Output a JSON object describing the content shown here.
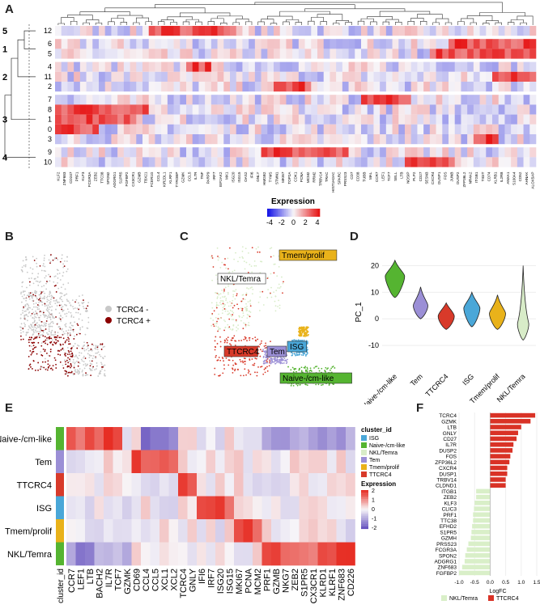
{
  "panel_labels": {
    "a": "A",
    "b": "B",
    "c": "C",
    "d": "D",
    "e": "E",
    "f": "F"
  },
  "panel_a": {
    "cluster_groups": [
      "5",
      "1",
      "2",
      "3",
      "4"
    ],
    "rows": [
      "12",
      "6",
      "5",
      "4",
      "11",
      "2",
      "7",
      "8",
      "1",
      "0",
      "3",
      "9",
      "10"
    ],
    "gene_labels": [
      "KLF2",
      "ZNF683",
      "CD247",
      "PRF1",
      "KLF3",
      "FCGR3A",
      "ZEB2",
      "TTC38",
      "SPON2",
      "ADGRG1",
      "S1PR5",
      "FGFBP2",
      "CX3CR1",
      "GZMB",
      "TBX21",
      "FCER1G",
      "CCL4",
      "KIR2DL1",
      "KLRF1",
      "TYROBP",
      "GZMK",
      "CCL5",
      "IL7R",
      "TNF",
      "PARP9",
      "IRF7",
      "EIF2AK2",
      "MX1",
      "ISG20",
      "ISG15",
      "OAS2",
      "IFI6",
      "GNLY",
      "HMGB2",
      "TYMS",
      "STMN1",
      "MKI67",
      "TOP2A",
      "CDK1",
      "PCNA",
      "MCM2",
      "RRM2",
      "TRBV14",
      "TRAC",
      "HIST1H2AC",
      "SPARC",
      "PRSS23",
      "CD7",
      "CD38",
      "TUBB",
      "MAL",
      "CCR7",
      "LEF1",
      "TCF7",
      "SELL",
      "LTB",
      "NOSIP",
      "PLP2",
      "CD27",
      "SESN3",
      "CXCR4",
      "DUSP1",
      "FOS",
      "JUNB",
      "DUSP2",
      "ZFP36L2",
      "NR4A2",
      "ITGB1",
      "TIGIT",
      "CD74",
      "KLRB1",
      "IL2RB",
      "ANXA1",
      "S100A4",
      "CD52",
      "AHNAK",
      "ALOX5AP"
    ],
    "legend_title": "Expression",
    "legend_ticks": [
      "-4",
      "-2",
      "0",
      "2",
      "4"
    ]
  },
  "panel_b": {
    "legend": [
      "TCRC4 -",
      "TCRC4 +"
    ],
    "colors": {
      "neg": "#c8c8c8",
      "pos": "#8b0000"
    }
  },
  "panel_c": {
    "labels": [
      "NKL/Temra",
      "Tmem/prolif",
      "TTCRC4",
      "Tem",
      "ISG",
      "Naive-/cm-like"
    ]
  },
  "panel_d": {
    "ylabel": "PC_1",
    "yticks": [
      "20",
      "10",
      "0",
      "-10"
    ],
    "categories": [
      "Naive-/cm-like",
      "Tem",
      "TTCRC4",
      "ISG",
      "Tmem/prolif",
      "NKL/Temra"
    ],
    "colors": [
      "#55b431",
      "#9b8fd6",
      "#d83a2a",
      "#4aa7d8",
      "#e9b21a",
      "#d8ecc8"
    ]
  },
  "panel_e": {
    "rows": [
      "Naive-/cm-like",
      "Tem",
      "TTCRC4",
      "ISG",
      "Tmem/prolif",
      "NKL/Temra"
    ],
    "row_colors": [
      "#55b431",
      "#9b8fd6",
      "#d83a2a",
      "#4aa7d8",
      "#e9b21a",
      "#55b431"
    ],
    "cols": [
      "CCR7",
      "LEF1",
      "LTB",
      "BACH2",
      "IL7R",
      "TCF7",
      "GZMK",
      "CD69",
      "CCL4",
      "CCL5",
      "XCL1",
      "XCL2",
      "TCRC4",
      "GNLY",
      "IFI6",
      "IRF7",
      "ISG20",
      "ISG15",
      "MKI67",
      "PCNA",
      "MCM2",
      "PRF1",
      "GZMB",
      "NKG7",
      "ZEB2",
      "S1PR5",
      "CX3CR1",
      "KLRD1",
      "KLRF1",
      "ZNF683",
      "CD226"
    ],
    "annot_label": "cluster_id",
    "legend1_title": "cluster_id",
    "legend1": [
      "ISG",
      "Naive-/cm-like",
      "NKL/Temra",
      "Tem",
      "Tmem/prolif",
      "TTCRC4"
    ],
    "legend1_colors": [
      "#4aa7d8",
      "#55b431",
      "#d8ecc8",
      "#9b8fd6",
      "#e9b21a",
      "#d83a2a"
    ],
    "legend2_title": "Expression",
    "legend2_ticks": [
      "2",
      "1",
      "0",
      "-1",
      "-2"
    ]
  },
  "chart_data": {
    "type": "bar",
    "orientation": "horizontal",
    "title": "",
    "xlabel": "LogFC",
    "ylabel": "",
    "xlim": [
      -1.0,
      1.5
    ],
    "xticks": [
      "-1.0",
      "-0.5",
      "0.0",
      "0.5",
      "1.0",
      "1.5"
    ],
    "categories": [
      "TCRC4",
      "GZMK",
      "LTB",
      "GNLY",
      "CD27",
      "IL7R",
      "DUSP2",
      "FOS",
      "ZFP36L2",
      "CXCR4",
      "DUSP1",
      "TRBV14",
      "CLDND1",
      "ITGB1",
      "ZEB2",
      "KLF3",
      "CLIC3",
      "PRF1",
      "TTC38",
      "EFHD2",
      "S1PR5",
      "GZMH",
      "PRSS23",
      "FCGR3A",
      "SPON2",
      "ADGRG1",
      "ZNF683",
      "FGFBP2"
    ],
    "values": [
      1.45,
      1.3,
      1.0,
      0.9,
      0.85,
      0.75,
      0.72,
      0.65,
      0.62,
      0.55,
      0.55,
      0.5,
      0.5,
      -0.45,
      -0.45,
      -0.5,
      -0.52,
      -0.55,
      -0.55,
      -0.58,
      -0.6,
      -0.62,
      -0.7,
      -0.75,
      -0.8,
      -0.82,
      -0.9,
      -1.0
    ],
    "legend": [
      "NKL/Temra",
      "TTCRC4"
    ],
    "colors": {
      "pos": "#d93226",
      "neg": "#d9efc8"
    }
  }
}
